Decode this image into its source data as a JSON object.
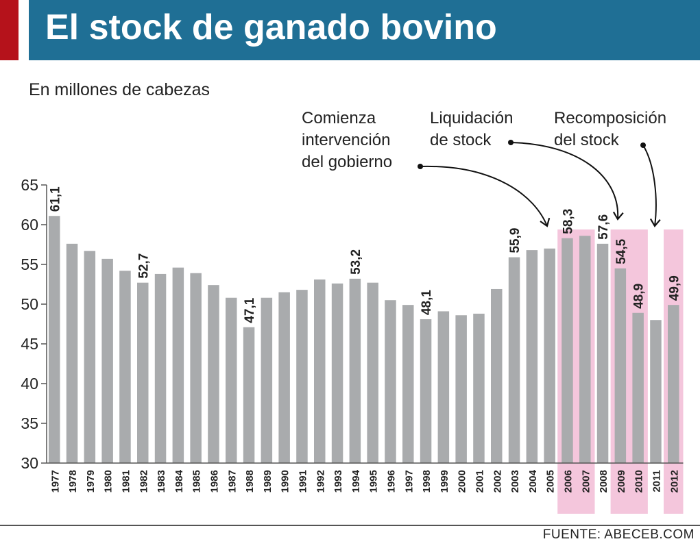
{
  "title": "El stock de ganado bovino",
  "subtitle": "En millones de cabezas",
  "source": "FUENTE: ABECEB.COM",
  "colors": {
    "header": "#1f6f95",
    "accent": "#b5121b",
    "bar": "#a9abad",
    "highlight": "#f4c6dc",
    "text": "#222222"
  },
  "annotations": [
    {
      "lines": [
        "Comienza",
        "intervención",
        "del gobierno"
      ]
    },
    {
      "lines": [
        "Liquidación",
        "de stock"
      ]
    },
    {
      "lines": [
        "Recomposición",
        "del stock"
      ]
    }
  ],
  "chart_data": {
    "type": "bar",
    "title": "El stock de ganado bovino",
    "ylabel": "En millones de cabezas",
    "ylim": [
      30,
      65
    ],
    "yticks": [
      30,
      35,
      40,
      45,
      50,
      55,
      60,
      65
    ],
    "grid": false,
    "categories": [
      "1977",
      "1978",
      "1979",
      "1980",
      "1981",
      "1982",
      "1983",
      "1984",
      "1985",
      "1986",
      "1987",
      "1988",
      "1989",
      "1990",
      "1991",
      "1992",
      "1993",
      "1994",
      "1995",
      "1996",
      "1997",
      "1998",
      "1999",
      "2000",
      "2001",
      "2002",
      "2003",
      "2004",
      "2005",
      "2006",
      "2007",
      "2008",
      "2009",
      "2010",
      "2011",
      "2012"
    ],
    "values": [
      61.1,
      57.6,
      56.7,
      55.7,
      54.2,
      52.7,
      53.8,
      54.6,
      53.9,
      52.4,
      50.8,
      47.1,
      50.8,
      51.5,
      51.8,
      53.1,
      52.6,
      53.2,
      52.7,
      50.5,
      49.9,
      48.1,
      49.1,
      48.6,
      48.8,
      51.9,
      55.9,
      56.8,
      57.0,
      58.3,
      58.6,
      57.6,
      54.5,
      48.9,
      48.0,
      49.9
    ],
    "data_labels": [
      {
        "year": "1977",
        "label": "61,1"
      },
      {
        "year": "1982",
        "label": "52,7"
      },
      {
        "year": "1988",
        "label": "47,1"
      },
      {
        "year": "1994",
        "label": "53,2"
      },
      {
        "year": "1998",
        "label": "48,1"
      },
      {
        "year": "2003",
        "label": "55,9"
      },
      {
        "year": "2006",
        "label": "58,3"
      },
      {
        "year": "2008",
        "label": "57,6"
      },
      {
        "year": "2009",
        "label": "54,5"
      },
      {
        "year": "2010",
        "label": "48,9"
      },
      {
        "year": "2012",
        "label": "49,9"
      }
    ],
    "highlight_periods": [
      {
        "from": "2006",
        "to": "2007"
      },
      {
        "from": "2009",
        "to": "2010"
      },
      {
        "from": "2012",
        "to": "2012"
      }
    ]
  }
}
